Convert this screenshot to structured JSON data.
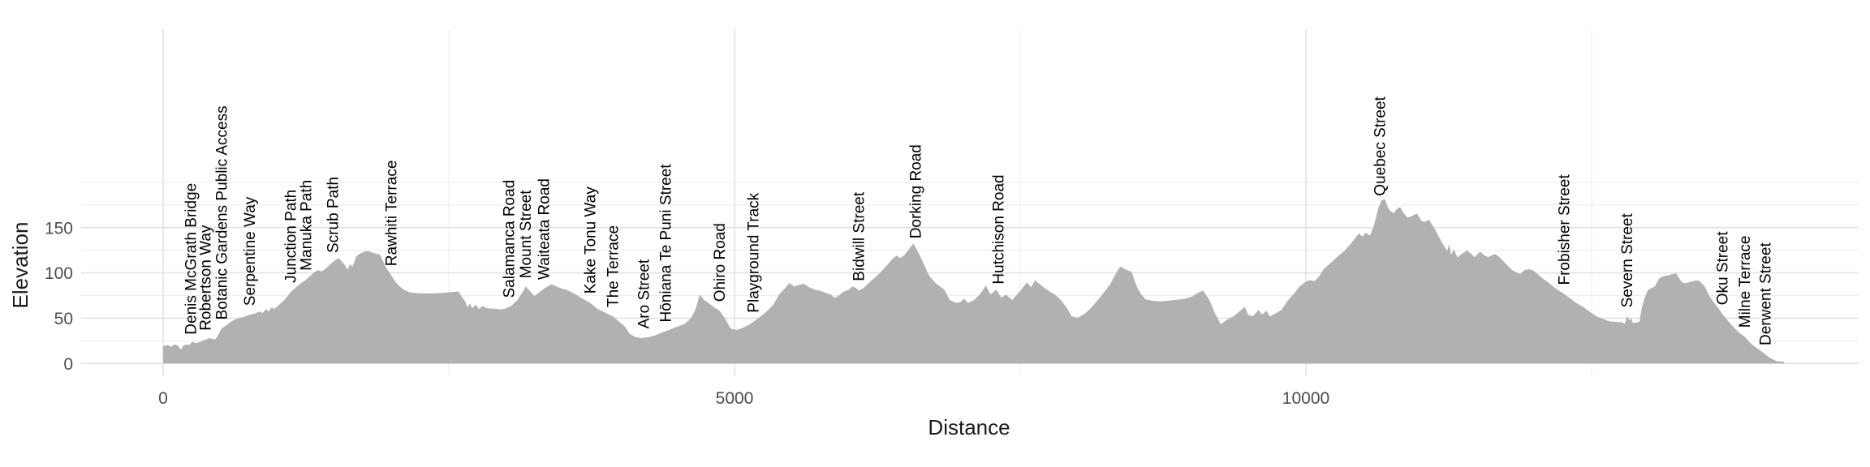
{
  "chart_data": {
    "type": "area",
    "title": "",
    "xlabel": "Distance",
    "ylabel": "Elevation",
    "grid": true,
    "legend": false,
    "xlim": [
      -717,
      14837
    ],
    "ylim": [
      -15,
      369
    ],
    "x_tick_values": [
      0,
      5000,
      10000
    ],
    "x_tick_labels": [
      "0",
      "5000",
      "10000"
    ],
    "x_minor_tick_values": [
      2500,
      7500,
      12500
    ],
    "y_tick_values": [
      0,
      50,
      100,
      150
    ],
    "y_tick_labels": [
      "0",
      "50",
      "100",
      "150"
    ],
    "y_minor_tick_values": [
      25,
      75,
      125,
      175,
      200
    ],
    "colors": {
      "area_fill": "#b1b1b1",
      "grid_major": "#e2e2e2",
      "grid_minor": "#ededed",
      "tick_text": "#4d4d4d",
      "axis_title_text": "#1a1a1a",
      "waypoint_text": "#000000",
      "background": "#ffffff"
    },
    "profile": [
      [
        0,
        19
      ],
      [
        40,
        20.5
      ],
      [
        70,
        18.5
      ],
      [
        100,
        21
      ],
      [
        130,
        19.5
      ],
      [
        156,
        15
      ],
      [
        175,
        19.5
      ],
      [
        205,
        21
      ],
      [
        230,
        20.5
      ],
      [
        255,
        24
      ],
      [
        285,
        22.5
      ],
      [
        315,
        23.5
      ],
      [
        345,
        25
      ],
      [
        375,
        26.5
      ],
      [
        405,
        28
      ],
      [
        435,
        27
      ],
      [
        455,
        26.5
      ],
      [
        470,
        29
      ],
      [
        511,
        38.5
      ],
      [
        540,
        41
      ],
      [
        570,
        44
      ],
      [
        610,
        47.5
      ],
      [
        650,
        49.5
      ],
      [
        700,
        51
      ],
      [
        750,
        53.5
      ],
      [
        800,
        55
      ],
      [
        845,
        57.5
      ],
      [
        870,
        55.5
      ],
      [
        900,
        60
      ],
      [
        925,
        57.5
      ],
      [
        950,
        62
      ],
      [
        970,
        60
      ],
      [
        1000,
        63
      ],
      [
        1030,
        66.5
      ],
      [
        1060,
        70
      ],
      [
        1090,
        74.5
      ],
      [
        1115,
        79
      ],
      [
        1145,
        82
      ],
      [
        1175,
        85.5
      ],
      [
        1205,
        88.5
      ],
      [
        1235,
        91
      ],
      [
        1265,
        94
      ],
      [
        1295,
        97.5
      ],
      [
        1325,
        101
      ],
      [
        1355,
        103
      ],
      [
        1385,
        101.5
      ],
      [
        1415,
        104
      ],
      [
        1445,
        107.5
      ],
      [
        1475,
        111
      ],
      [
        1505,
        114
      ],
      [
        1535,
        116.5
      ],
      [
        1565,
        112.5
      ],
      [
        1590,
        108.5
      ],
      [
        1612,
        103.5
      ],
      [
        1635,
        109.5
      ],
      [
        1658,
        107
      ],
      [
        1690,
        118.5
      ],
      [
        1725,
        121.5
      ],
      [
        1760,
        123.5
      ],
      [
        1795,
        124
      ],
      [
        1830,
        122.5
      ],
      [
        1865,
        121
      ],
      [
        1895,
        120.5
      ],
      [
        1911,
        116.5
      ],
      [
        1950,
        106
      ],
      [
        1990,
        98.5
      ],
      [
        2030,
        90.5
      ],
      [
        2070,
        85
      ],
      [
        2110,
        81
      ],
      [
        2160,
        78.5
      ],
      [
        2230,
        77.5
      ],
      [
        2300,
        77.3
      ],
      [
        2380,
        77.5
      ],
      [
        2450,
        78
      ],
      [
        2520,
        78.7
      ],
      [
        2585,
        79.5
      ],
      [
        2620,
        72.5
      ],
      [
        2645,
        68
      ],
      [
        2660,
        62
      ],
      [
        2685,
        66
      ],
      [
        2705,
        61
      ],
      [
        2735,
        65
      ],
      [
        2765,
        60
      ],
      [
        2795,
        63.5
      ],
      [
        2835,
        61
      ],
      [
        2900,
        60.5
      ],
      [
        2960,
        59.5
      ],
      [
        3005,
        61
      ],
      [
        3050,
        64
      ],
      [
        3100,
        70
      ],
      [
        3140,
        78
      ],
      [
        3175,
        85
      ],
      [
        3215,
        79
      ],
      [
        3250,
        74.5
      ],
      [
        3295,
        79
      ],
      [
        3335,
        83
      ],
      [
        3400,
        87.5
      ],
      [
        3460,
        84
      ],
      [
        3545,
        80.5
      ],
      [
        3600,
        77
      ],
      [
        3665,
        72
      ],
      [
        3735,
        67
      ],
      [
        3800,
        60.5
      ],
      [
        3870,
        56
      ],
      [
        3935,
        52
      ],
      [
        3990,
        46
      ],
      [
        4040,
        41
      ],
      [
        4080,
        33
      ],
      [
        4125,
        29.5
      ],
      [
        4180,
        28
      ],
      [
        4245,
        29
      ],
      [
        4305,
        31
      ],
      [
        4365,
        34
      ],
      [
        4425,
        37
      ],
      [
        4485,
        40
      ],
      [
        4560,
        43.5
      ],
      [
        4620,
        50
      ],
      [
        4660,
        60
      ],
      [
        4695,
        76
      ],
      [
        4730,
        70.5
      ],
      [
        4770,
        67
      ],
      [
        4820,
        62
      ],
      [
        4870,
        58
      ],
      [
        4915,
        50
      ],
      [
        4965,
        38.5
      ],
      [
        5015,
        37
      ],
      [
        5065,
        39
      ],
      [
        5115,
        42
      ],
      [
        5165,
        46
      ],
      [
        5230,
        52
      ],
      [
        5290,
        58.5
      ],
      [
        5340,
        65
      ],
      [
        5390,
        76
      ],
      [
        5440,
        83
      ],
      [
        5480,
        89
      ],
      [
        5520,
        85
      ],
      [
        5560,
        86.5
      ],
      [
        5605,
        88
      ],
      [
        5655,
        84
      ],
      [
        5705,
        81.5
      ],
      [
        5755,
        80
      ],
      [
        5805,
        77.5
      ],
      [
        5845,
        76
      ],
      [
        5870,
        72.5
      ],
      [
        5905,
        74
      ],
      [
        5950,
        79
      ],
      [
        6000,
        81.5
      ],
      [
        6030,
        85
      ],
      [
        6060,
        83.5
      ],
      [
        6090,
        80.5
      ],
      [
        6135,
        84
      ],
      [
        6185,
        90
      ],
      [
        6265,
        99
      ],
      [
        6330,
        108
      ],
      [
        6385,
        116
      ],
      [
        6420,
        119
      ],
      [
        6450,
        116.5
      ],
      [
        6485,
        119.5
      ],
      [
        6525,
        126
      ],
      [
        6565,
        132.5
      ],
      [
        6610,
        122
      ],
      [
        6655,
        110
      ],
      [
        6705,
        96.5
      ],
      [
        6765,
        88
      ],
      [
        6835,
        81.5
      ],
      [
        6885,
        70
      ],
      [
        6935,
        67
      ],
      [
        6975,
        67.5
      ],
      [
        7005,
        71.5
      ],
      [
        7045,
        67
      ],
      [
        7095,
        70
      ],
      [
        7145,
        76
      ],
      [
        7200,
        86
      ],
      [
        7240,
        76
      ],
      [
        7290,
        81.5
      ],
      [
        7335,
        72.5
      ],
      [
        7375,
        76
      ],
      [
        7430,
        70
      ],
      [
        7500,
        80
      ],
      [
        7560,
        89.5
      ],
      [
        7595,
        84
      ],
      [
        7630,
        92
      ],
      [
        7685,
        86
      ],
      [
        7745,
        80.5
      ],
      [
        7805,
        76
      ],
      [
        7855,
        70
      ],
      [
        7905,
        62
      ],
      [
        7950,
        52
      ],
      [
        8005,
        50.5
      ],
      [
        8065,
        55
      ],
      [
        8125,
        62
      ],
      [
        8205,
        74
      ],
      [
        8290,
        88
      ],
      [
        8335,
        99
      ],
      [
        8375,
        107
      ],
      [
        8430,
        103.5
      ],
      [
        8475,
        101
      ],
      [
        8520,
        85
      ],
      [
        8555,
        77
      ],
      [
        8595,
        71
      ],
      [
        8665,
        69
      ],
      [
        8735,
        68.5
      ],
      [
        8805,
        69.5
      ],
      [
        8875,
        70.5
      ],
      [
        8945,
        71.5
      ],
      [
        9005,
        74
      ],
      [
        9055,
        78
      ],
      [
        9100,
        80.5
      ],
      [
        9155,
        70
      ],
      [
        9205,
        55
      ],
      [
        9255,
        43.5
      ],
      [
        9305,
        48
      ],
      [
        9365,
        52
      ],
      [
        9425,
        58
      ],
      [
        9465,
        62.5
      ],
      [
        9495,
        53.5
      ],
      [
        9535,
        52
      ],
      [
        9585,
        59
      ],
      [
        9615,
        54
      ],
      [
        9655,
        58
      ],
      [
        9685,
        52
      ],
      [
        9725,
        54.5
      ],
      [
        9785,
        59
      ],
      [
        9845,
        70
      ],
      [
        9905,
        78.5
      ],
      [
        9945,
        85
      ],
      [
        9995,
        90
      ],
      [
        10035,
        92
      ],
      [
        10075,
        91
      ],
      [
        10115,
        96
      ],
      [
        10155,
        104
      ],
      [
        10225,
        112
      ],
      [
        10295,
        120
      ],
      [
        10335,
        124
      ],
      [
        10395,
        132.5
      ],
      [
        10435,
        139
      ],
      [
        10465,
        143.5
      ],
      [
        10495,
        140
      ],
      [
        10525,
        144.5
      ],
      [
        10560,
        141
      ],
      [
        10595,
        152
      ],
      [
        10630,
        170
      ],
      [
        10660,
        180
      ],
      [
        10690,
        181.5
      ],
      [
        10715,
        173
      ],
      [
        10740,
        168
      ],
      [
        10770,
        166
      ],
      [
        10800,
        171
      ],
      [
        10825,
        172.5
      ],
      [
        10855,
        166
      ],
      [
        10890,
        161
      ],
      [
        10930,
        163
      ],
      [
        10970,
        165.5
      ],
      [
        11015,
        157
      ],
      [
        11045,
        156.5
      ],
      [
        11075,
        159
      ],
      [
        11125,
        149
      ],
      [
        11185,
        135
      ],
      [
        11235,
        124
      ],
      [
        11255,
        131.5
      ],
      [
        11270,
        120
      ],
      [
        11295,
        126
      ],
      [
        11325,
        117
      ],
      [
        11365,
        121
      ],
      [
        11410,
        125
      ],
      [
        11455,
        120
      ],
      [
        11475,
        117.5
      ],
      [
        11525,
        123.5
      ],
      [
        11565,
        119
      ],
      [
        11595,
        117.5
      ],
      [
        11655,
        121
      ],
      [
        11705,
        116
      ],
      [
        11735,
        112
      ],
      [
        11805,
        103
      ],
      [
        11875,
        98.5
      ],
      [
        11915,
        103.5
      ],
      [
        11955,
        104
      ],
      [
        11985,
        103
      ],
      [
        12025,
        99
      ],
      [
        12070,
        94
      ],
      [
        12125,
        89
      ],
      [
        12185,
        83
      ],
      [
        12245,
        78
      ],
      [
        12305,
        72.5
      ],
      [
        12365,
        67
      ],
      [
        12425,
        62.5
      ],
      [
        12485,
        57
      ],
      [
        12545,
        52
      ],
      [
        12605,
        49
      ],
      [
        12655,
        46.5
      ],
      [
        12705,
        46
      ],
      [
        12765,
        45.5
      ],
      [
        12790,
        43.8
      ],
      [
        12812,
        52.5
      ],
      [
        12830,
        47.5
      ],
      [
        12845,
        50
      ],
      [
        12862,
        44.5
      ],
      [
        12895,
        45.5
      ],
      [
        12920,
        46
      ],
      [
        12938,
        61
      ],
      [
        12962,
        71.5
      ],
      [
        12992,
        81
      ],
      [
        13022,
        83
      ],
      [
        13052,
        85
      ],
      [
        13092,
        94
      ],
      [
        13135,
        96.5
      ],
      [
        13175,
        97.5
      ],
      [
        13205,
        98.5
      ],
      [
        13240,
        99.5
      ],
      [
        13290,
        89.5
      ],
      [
        13325,
        88.5
      ],
      [
        13370,
        90.5
      ],
      [
        13405,
        91.3
      ],
      [
        13440,
        91.6
      ],
      [
        13490,
        85
      ],
      [
        13525,
        76
      ],
      [
        13560,
        69
      ],
      [
        13610,
        61
      ],
      [
        13650,
        53.5
      ],
      [
        13700,
        46
      ],
      [
        13740,
        40.5
      ],
      [
        13790,
        34
      ],
      [
        13840,
        29.5
      ],
      [
        13890,
        22.5
      ],
      [
        13935,
        18
      ],
      [
        13985,
        13.5
      ],
      [
        14030,
        9
      ],
      [
        14070,
        5.5
      ],
      [
        14120,
        2.5
      ],
      [
        14185,
        2
      ]
    ],
    "waypoints": [
      {
        "label": "Denis McGrath Bridge",
        "distance": 240
      },
      {
        "label": "Robertson Way",
        "distance": 370
      },
      {
        "label": "Botanic Gardens Public Access",
        "distance": 510
      },
      {
        "label": "Serpentine Way",
        "distance": 755
      },
      {
        "label": "Junction Path",
        "distance": 1115
      },
      {
        "label": "Manuka Path",
        "distance": 1250
      },
      {
        "label": "Scrub Path",
        "distance": 1485
      },
      {
        "label": "Rawhiti Terrace",
        "distance": 1995
      },
      {
        "label": "Salamanca Road",
        "distance": 3025
      },
      {
        "label": "Mount Street",
        "distance": 3170
      },
      {
        "label": "Waiteata Road",
        "distance": 3330
      },
      {
        "label": "Kake Tonu Way",
        "distance": 3735
      },
      {
        "label": "The Terrace",
        "distance": 3935
      },
      {
        "label": "Aro Street",
        "distance": 4205
      },
      {
        "label": "Hōniana Te Puni Street",
        "distance": 4395
      },
      {
        "label": "Ohiro Road",
        "distance": 4870
      },
      {
        "label": "Playground Track",
        "distance": 5165
      },
      {
        "label": "Bidwill Street",
        "distance": 6085
      },
      {
        "label": "Dorking Road",
        "distance": 6585
      },
      {
        "label": "Hutchison Road",
        "distance": 7310
      },
      {
        "label": "Quebec Street",
        "distance": 10645
      },
      {
        "label": "Frobisher Street",
        "distance": 12260
      },
      {
        "label": "Severn Street",
        "distance": 12810
      },
      {
        "label": "Oku Street",
        "distance": 13645
      },
      {
        "label": "Milne Terrace",
        "distance": 13840
      },
      {
        "label": "Derwent Street",
        "distance": 14020
      }
    ]
  }
}
